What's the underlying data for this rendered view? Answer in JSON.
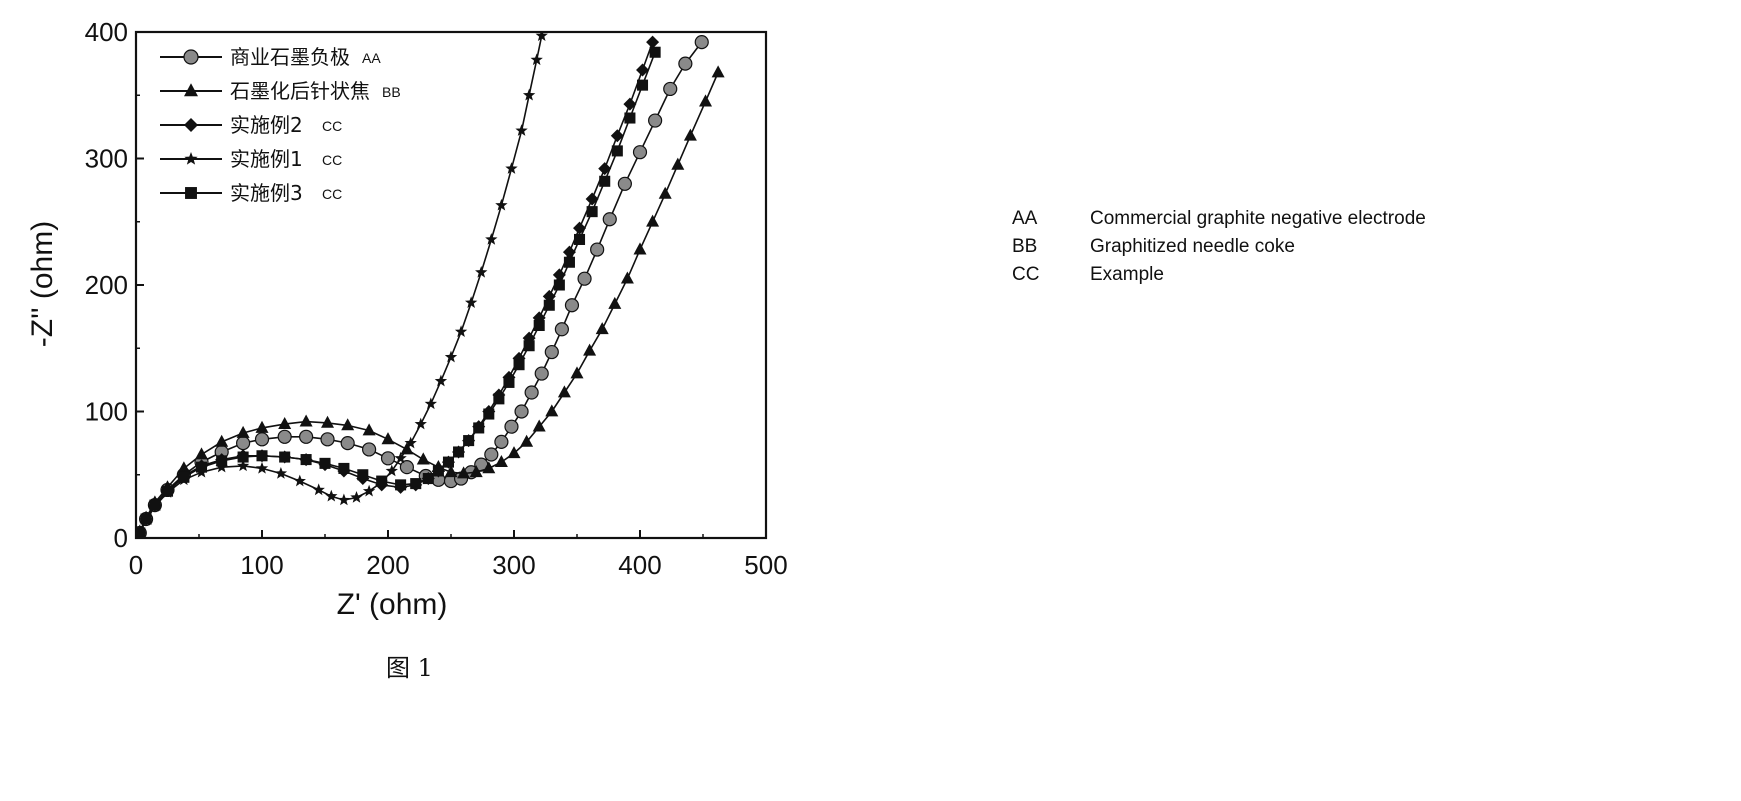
{
  "chart_data": {
    "type": "scatter",
    "xlabel": "Z' (ohm)",
    "ylabel": "-Z'' (ohm)",
    "xlim": [
      0,
      500
    ],
    "ylim": [
      0,
      400
    ],
    "xticks": [
      "0",
      "100",
      "200",
      "300",
      "400",
      "500"
    ],
    "yticks": [
      "0",
      "100",
      "200",
      "300",
      "400"
    ],
    "grid": false,
    "legend_position": "top-left",
    "series": [
      {
        "name": "商业石墨负极",
        "code": "AA",
        "marker": "circle",
        "points": [
          [
            3,
            4
          ],
          [
            8,
            15
          ],
          [
            15,
            26
          ],
          [
            25,
            38
          ],
          [
            38,
            50
          ],
          [
            52,
            60
          ],
          [
            68,
            68
          ],
          [
            85,
            75
          ],
          [
            100,
            78
          ],
          [
            118,
            80
          ],
          [
            135,
            80
          ],
          [
            152,
            78
          ],
          [
            168,
            75
          ],
          [
            185,
            70
          ],
          [
            200,
            63
          ],
          [
            215,
            56
          ],
          [
            230,
            49
          ],
          [
            240,
            46
          ],
          [
            250,
            45
          ],
          [
            258,
            47
          ],
          [
            266,
            52
          ],
          [
            274,
            58
          ],
          [
            282,
            66
          ],
          [
            290,
            76
          ],
          [
            298,
            88
          ],
          [
            306,
            100
          ],
          [
            314,
            115
          ],
          [
            322,
            130
          ],
          [
            330,
            147
          ],
          [
            338,
            165
          ],
          [
            346,
            184
          ],
          [
            356,
            205
          ],
          [
            366,
            228
          ],
          [
            376,
            252
          ],
          [
            388,
            280
          ],
          [
            400,
            305
          ],
          [
            412,
            330
          ],
          [
            424,
            355
          ],
          [
            436,
            375
          ],
          [
            449,
            392
          ]
        ]
      },
      {
        "name": "石墨化后针状焦",
        "code": "BB",
        "marker": "triangle",
        "points": [
          [
            3,
            5
          ],
          [
            8,
            16
          ],
          [
            15,
            28
          ],
          [
            25,
            40
          ],
          [
            38,
            55
          ],
          [
            52,
            66
          ],
          [
            68,
            76
          ],
          [
            85,
            83
          ],
          [
            100,
            87
          ],
          [
            118,
            90
          ],
          [
            135,
            92
          ],
          [
            152,
            91
          ],
          [
            168,
            89
          ],
          [
            185,
            85
          ],
          [
            200,
            78
          ],
          [
            215,
            70
          ],
          [
            228,
            62
          ],
          [
            240,
            56
          ],
          [
            250,
            52
          ],
          [
            260,
            51
          ],
          [
            270,
            52
          ],
          [
            280,
            55
          ],
          [
            290,
            60
          ],
          [
            300,
            67
          ],
          [
            310,
            76
          ],
          [
            320,
            88
          ],
          [
            330,
            100
          ],
          [
            340,
            115
          ],
          [
            350,
            130
          ],
          [
            360,
            148
          ],
          [
            370,
            165
          ],
          [
            380,
            185
          ],
          [
            390,
            205
          ],
          [
            400,
            228
          ],
          [
            410,
            250
          ],
          [
            420,
            272
          ],
          [
            430,
            295
          ],
          [
            440,
            318
          ],
          [
            452,
            345
          ],
          [
            462,
            368
          ]
        ]
      },
      {
        "name": "实施例2",
        "code": "CC",
        "marker": "diamond",
        "points": [
          [
            3,
            4
          ],
          [
            8,
            15
          ],
          [
            15,
            26
          ],
          [
            25,
            38
          ],
          [
            38,
            49
          ],
          [
            52,
            57
          ],
          [
            68,
            62
          ],
          [
            85,
            65
          ],
          [
            100,
            65
          ],
          [
            118,
            64
          ],
          [
            135,
            62
          ],
          [
            150,
            58
          ],
          [
            165,
            53
          ],
          [
            180,
            47
          ],
          [
            195,
            42
          ],
          [
            210,
            40
          ],
          [
            222,
            42
          ],
          [
            232,
            47
          ],
          [
            240,
            53
          ],
          [
            248,
            60
          ],
          [
            256,
            68
          ],
          [
            264,
            77
          ],
          [
            272,
            88
          ],
          [
            280,
            100
          ],
          [
            288,
            113
          ],
          [
            296,
            127
          ],
          [
            304,
            142
          ],
          [
            312,
            158
          ],
          [
            320,
            174
          ],
          [
            328,
            191
          ],
          [
            336,
            208
          ],
          [
            344,
            226
          ],
          [
            352,
            245
          ],
          [
            362,
            268
          ],
          [
            372,
            292
          ],
          [
            382,
            318
          ],
          [
            392,
            343
          ],
          [
            402,
            370
          ],
          [
            410,
            392
          ]
        ]
      },
      {
        "name": "实施例1",
        "code": "CC",
        "marker": "star",
        "points": [
          [
            3,
            4
          ],
          [
            8,
            14
          ],
          [
            15,
            25
          ],
          [
            25,
            36
          ],
          [
            38,
            46
          ],
          [
            52,
            52
          ],
          [
            68,
            56
          ],
          [
            85,
            57
          ],
          [
            100,
            55
          ],
          [
            115,
            51
          ],
          [
            130,
            45
          ],
          [
            145,
            38
          ],
          [
            155,
            33
          ],
          [
            165,
            30
          ],
          [
            175,
            32
          ],
          [
            185,
            37
          ],
          [
            195,
            44
          ],
          [
            203,
            53
          ],
          [
            210,
            63
          ],
          [
            218,
            75
          ],
          [
            226,
            90
          ],
          [
            234,
            106
          ],
          [
            242,
            124
          ],
          [
            250,
            143
          ],
          [
            258,
            163
          ],
          [
            266,
            186
          ],
          [
            274,
            210
          ],
          [
            282,
            236
          ],
          [
            290,
            263
          ],
          [
            298,
            292
          ],
          [
            306,
            322
          ],
          [
            312,
            350
          ],
          [
            318,
            378
          ],
          [
            322,
            397
          ]
        ]
      },
      {
        "name": "实施例3",
        "code": "CC",
        "marker": "square",
        "points": [
          [
            3,
            4
          ],
          [
            8,
            15
          ],
          [
            15,
            26
          ],
          [
            25,
            37
          ],
          [
            38,
            48
          ],
          [
            52,
            56
          ],
          [
            68,
            61
          ],
          [
            85,
            64
          ],
          [
            100,
            65
          ],
          [
            118,
            64
          ],
          [
            135,
            62
          ],
          [
            150,
            59
          ],
          [
            165,
            55
          ],
          [
            180,
            50
          ],
          [
            195,
            45
          ],
          [
            210,
            42
          ],
          [
            222,
            43
          ],
          [
            232,
            47
          ],
          [
            240,
            53
          ],
          [
            248,
            60
          ],
          [
            256,
            68
          ],
          [
            264,
            77
          ],
          [
            272,
            87
          ],
          [
            280,
            98
          ],
          [
            288,
            110
          ],
          [
            296,
            123
          ],
          [
            304,
            137
          ],
          [
            312,
            152
          ],
          [
            320,
            168
          ],
          [
            328,
            184
          ],
          [
            336,
            200
          ],
          [
            344,
            218
          ],
          [
            352,
            236
          ],
          [
            362,
            258
          ],
          [
            372,
            282
          ],
          [
            382,
            306
          ],
          [
            392,
            332
          ],
          [
            402,
            358
          ],
          [
            412,
            384
          ]
        ]
      }
    ]
  },
  "figure_caption": "图 1",
  "key": [
    {
      "code": "AA",
      "text": "Commercial graphite negative electrode"
    },
    {
      "code": "BB",
      "text": "Graphitized needle coke"
    },
    {
      "code": "CC",
      "text": "Example"
    }
  ],
  "colors": {
    "ink": "#111111",
    "circle_fill": "#8a8a8a"
  }
}
